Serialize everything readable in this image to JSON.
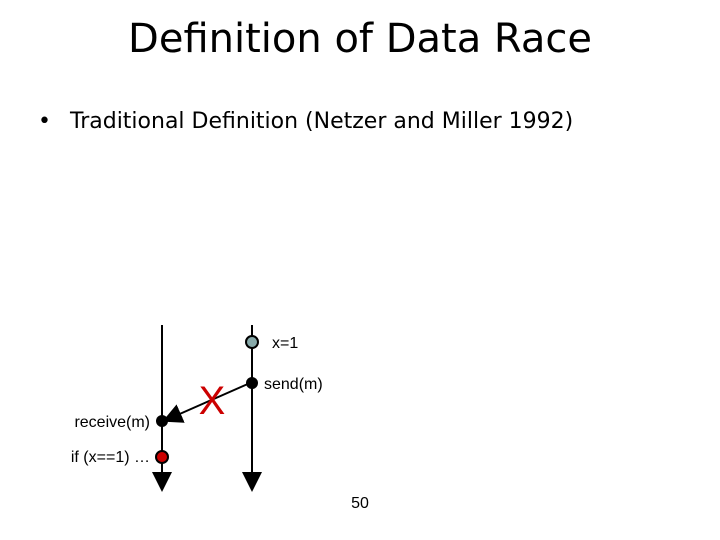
{
  "title": "Definition of Data Race",
  "bullets": [
    "Traditional Definition (Netzer and Miller 1992)"
  ],
  "nodes": [
    {
      "label": "x=1"
    },
    {
      "label": "send(m)"
    },
    {
      "label": "receive(m)"
    },
    {
      "label": "if (x==1) …"
    }
  ],
  "marker": "X",
  "page_number": "50"
}
